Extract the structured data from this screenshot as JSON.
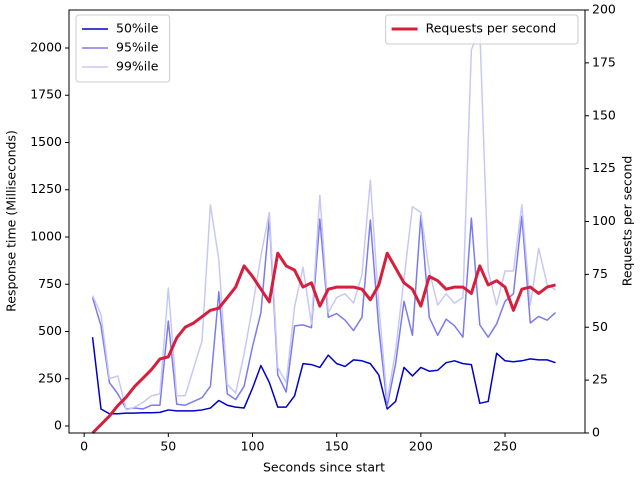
{
  "chart_data": {
    "type": "line",
    "xlabel": "Seconds since start",
    "ylabel": "Response time (Milliseconds)",
    "y2label": "Requests per second",
    "x": [
      5,
      10,
      15,
      20,
      25,
      30,
      35,
      40,
      45,
      50,
      55,
      60,
      65,
      70,
      75,
      80,
      85,
      90,
      95,
      100,
      105,
      110,
      115,
      120,
      125,
      130,
      135,
      140,
      145,
      150,
      155,
      160,
      165,
      170,
      175,
      180,
      185,
      190,
      195,
      200,
      205,
      210,
      215,
      220,
      225,
      230,
      235,
      240,
      245,
      250,
      255,
      260,
      265,
      270,
      275,
      280
    ],
    "xlim": [
      -9,
      297.5
    ],
    "xticks": [
      0,
      50,
      100,
      150,
      200,
      250
    ],
    "ylim": [
      -37,
      2201
    ],
    "yticks": [
      0,
      250,
      500,
      750,
      1000,
      1250,
      1500,
      1750,
      2000
    ],
    "y2lim": [
      0,
      200
    ],
    "y2ticks": [
      0,
      25,
      50,
      75,
      100,
      125,
      150,
      175,
      200
    ],
    "legend": "upper left",
    "legend2": "upper right",
    "series": [
      {
        "name": "50%ile",
        "color": "#0000c8",
        "values": [
          470,
          90,
          65,
          65,
          68,
          68,
          70,
          70,
          72,
          85,
          80,
          80,
          80,
          85,
          95,
          135,
          110,
          100,
          95,
          200,
          320,
          230,
          100,
          100,
          160,
          330,
          325,
          310,
          375,
          330,
          315,
          350,
          345,
          330,
          270,
          90,
          130,
          310,
          265,
          310,
          290,
          295,
          335,
          345,
          330,
          325,
          120,
          130,
          385,
          345,
          340,
          345,
          355,
          350,
          350,
          335
        ]
      },
      {
        "name": "95%ile",
        "color": "#7b7bee",
        "values": [
          680,
          530,
          230,
          170,
          90,
          95,
          90,
          110,
          110,
          555,
          115,
          110,
          130,
          150,
          210,
          710,
          170,
          140,
          210,
          420,
          600,
          1100,
          270,
          180,
          530,
          535,
          520,
          1095,
          575,
          595,
          560,
          505,
          575,
          1090,
          520,
          105,
          330,
          660,
          480,
          1115,
          575,
          480,
          565,
          530,
          470,
          1100,
          535,
          470,
          540,
          660,
          700,
          1110,
          545,
          580,
          560,
          600
        ]
      },
      {
        "name": "99%ile",
        "color": "#c8c8f8",
        "values": [
          690,
          590,
          250,
          265,
          85,
          100,
          125,
          160,
          170,
          730,
          160,
          160,
          305,
          450,
          1170,
          880,
          220,
          175,
          380,
          630,
          900,
          1130,
          310,
          230,
          630,
          840,
          540,
          1220,
          600,
          680,
          700,
          650,
          800,
          1300,
          640,
          135,
          400,
          780,
          1160,
          1130,
          820,
          640,
          700,
          650,
          680,
          1990,
          2100,
          820,
          640,
          820,
          820,
          1170,
          640,
          940,
          750,
          720
        ]
      },
      {
        "name": "Requests per second",
        "color": "#d61f3c",
        "axis": "y2",
        "values": [
          0,
          4,
          8,
          13,
          17,
          22,
          26,
          30,
          35,
          36,
          45,
          50,
          52,
          55,
          58,
          59,
          64,
          69,
          79,
          74,
          68,
          62,
          85,
          79,
          77,
          69,
          71,
          60,
          68,
          69,
          69,
          69,
          68,
          63,
          70,
          85,
          78,
          71,
          68,
          60,
          74,
          72,
          68,
          69,
          69,
          66,
          79,
          70,
          72,
          69,
          58,
          68,
          69,
          66,
          69,
          70
        ]
      }
    ]
  }
}
